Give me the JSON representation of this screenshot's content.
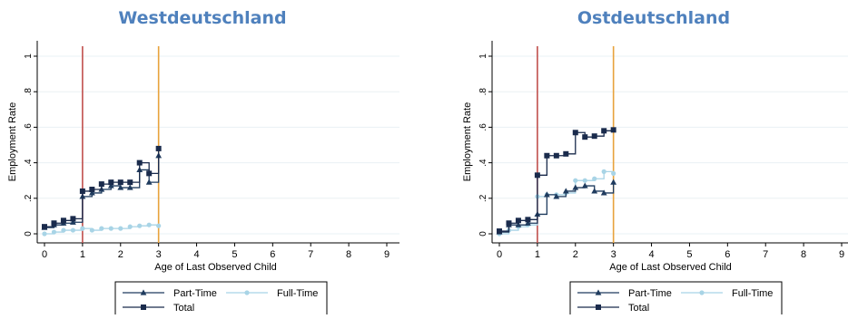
{
  "colors": {
    "title": "#4f81bd",
    "part_time": "#1f3b5e",
    "full_time": "#a8d4e6",
    "total": "#1a2b4c",
    "red_line": "#c0504d",
    "orange_line": "#e8a33d",
    "grid": "#eaf0f4",
    "axis": "#000000"
  },
  "chart_data": [
    {
      "type": "line",
      "title": "Westdeutschland",
      "xlabel": "Age of Last Observed Child",
      "ylabel": "Employment Rate",
      "xlim": [
        0,
        9
      ],
      "ylim": [
        0,
        1
      ],
      "xticks": [
        "0",
        "1",
        "2",
        "3",
        "4",
        "5",
        "6",
        "7",
        "8",
        "9"
      ],
      "yticks": [
        "0",
        ".2",
        ".4",
        ".6",
        ".8",
        "1"
      ],
      "vlines": [
        1,
        3
      ],
      "grid": true,
      "legend": "bottom",
      "series": [
        {
          "name": "Part-Time",
          "marker": "triangle",
          "x": [
            0,
            0.25,
            0.5,
            0.75,
            1,
            1.25,
            1.5,
            1.75,
            2,
            2.25,
            2.5,
            2.75,
            3
          ],
          "y": [
            0.035,
            0.05,
            0.06,
            0.065,
            0.21,
            0.23,
            0.25,
            0.27,
            0.26,
            0.26,
            0.36,
            0.29,
            0.44
          ]
        },
        {
          "name": "Full-Time",
          "marker": "circle",
          "x": [
            0,
            0.25,
            0.5,
            0.75,
            1,
            1.25,
            1.5,
            1.75,
            2,
            2.25,
            2.5,
            2.75,
            3
          ],
          "y": [
            0.0,
            0.01,
            0.02,
            0.02,
            0.03,
            0.02,
            0.03,
            0.03,
            0.03,
            0.04,
            0.045,
            0.05,
            0.045
          ]
        },
        {
          "name": "Total",
          "marker": "square",
          "x": [
            0,
            0.25,
            0.5,
            0.75,
            1,
            1.25,
            1.5,
            1.75,
            2,
            2.25,
            2.5,
            2.75,
            3
          ],
          "y": [
            0.04,
            0.06,
            0.075,
            0.085,
            0.24,
            0.25,
            0.28,
            0.29,
            0.29,
            0.29,
            0.4,
            0.34,
            0.48
          ]
        }
      ]
    },
    {
      "type": "line",
      "title": "Ostdeutschland",
      "xlabel": "Age of Last Observed Child",
      "ylabel": "Employment Rate",
      "xlim": [
        0,
        9
      ],
      "ylim": [
        0,
        1
      ],
      "xticks": [
        "0",
        "1",
        "2",
        "3",
        "4",
        "5",
        "6",
        "7",
        "8",
        "9"
      ],
      "yticks": [
        "0",
        ".2",
        ".4",
        ".6",
        ".8",
        "1"
      ],
      "vlines": [
        1,
        3
      ],
      "grid": true,
      "legend": "bottom",
      "series": [
        {
          "name": "Part-Time",
          "marker": "triangle",
          "x": [
            0,
            0.25,
            0.5,
            0.75,
            1,
            1.25,
            1.5,
            1.75,
            2,
            2.25,
            2.5,
            2.75,
            3
          ],
          "y": [
            0.01,
            0.05,
            0.05,
            0.06,
            0.11,
            0.22,
            0.21,
            0.24,
            0.26,
            0.27,
            0.24,
            0.23,
            0.29
          ]
        },
        {
          "name": "Full-Time",
          "marker": "circle",
          "x": [
            0,
            0.25,
            0.5,
            0.75,
            1,
            1.25,
            1.5,
            1.75,
            2,
            2.25,
            2.5,
            2.75,
            3
          ],
          "y": [
            0.0,
            0.02,
            0.04,
            0.05,
            0.21,
            0.22,
            0.22,
            0.23,
            0.3,
            0.3,
            0.31,
            0.35,
            0.34
          ]
        },
        {
          "name": "Total",
          "marker": "square",
          "x": [
            0,
            0.25,
            0.5,
            0.75,
            1,
            1.25,
            1.5,
            1.75,
            2,
            2.25,
            2.5,
            2.75,
            3
          ],
          "y": [
            0.015,
            0.06,
            0.075,
            0.08,
            0.33,
            0.44,
            0.44,
            0.45,
            0.57,
            0.545,
            0.55,
            0.58,
            0.585
          ]
        }
      ]
    }
  ]
}
